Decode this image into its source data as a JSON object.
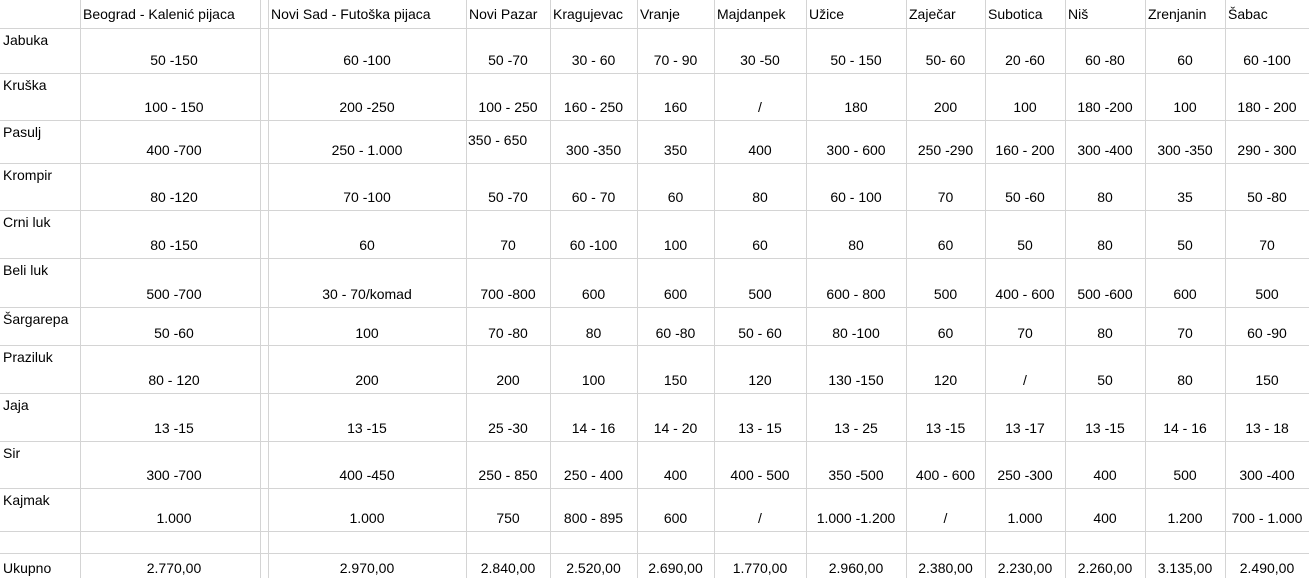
{
  "table": {
    "columns": [
      "Beograd - Kalenić pijaca",
      "Novi Sad - Futoška pijaca",
      "Novi Pazar",
      "Kragujevac",
      "Vranje",
      "Majdanpek",
      "Užice",
      "Zaječar",
      "Subotica",
      "Niš",
      "Zrenjanin",
      "Šabac"
    ],
    "rows": [
      {
        "label": "Jabuka",
        "cells": [
          "50 -150",
          "60 -100",
          "50 -70",
          "30 - 60",
          "70 - 90",
          "30 -50",
          "50 - 150",
          "50- 60",
          "20 -60",
          "60 -80",
          "60",
          "60 -100"
        ]
      },
      {
        "label": "Kruška",
        "cells": [
          "100 - 150",
          "200 -250",
          "100 - 250",
          "160 - 250",
          "160",
          "/",
          "180",
          "200",
          "100",
          "180 -200",
          "100",
          "180 - 200"
        ]
      },
      {
        "label": "Pasulj",
        "cells": [
          "400 -700",
          "250 - 1.000",
          "350 - 650",
          "300 -350",
          "350",
          "400",
          "300 - 600",
          "250 -290",
          "160 - 200",
          "300 -400",
          "300 -350",
          "290 - 300"
        ]
      },
      {
        "label": "Krompir",
        "cells": [
          "80 -120",
          "70 -100",
          "50 -70",
          "60 - 70",
          "60",
          "80",
          "60 - 100",
          "70",
          "50 -60",
          "80",
          "35",
          "50 -80"
        ]
      },
      {
        "label": "Crni luk",
        "cells": [
          "80 -150",
          "60",
          "70",
          "60 -100",
          "100",
          "60",
          "80",
          "60",
          "50",
          "80",
          "50",
          "70"
        ]
      },
      {
        "label": "Beli luk",
        "cells": [
          "500 -700",
          "30 - 70/komad",
          "700 -800",
          "600",
          "600",
          "500",
          "600 - 800",
          "500",
          "400 - 600",
          "500 -600",
          "600",
          "500"
        ]
      },
      {
        "label": "Šargarepa",
        "cells": [
          "50 -60",
          "100",
          "70 -80",
          "80",
          "60 -80",
          "50 - 60",
          "80 -100",
          "60",
          "70",
          "80",
          "70",
          "60 -90"
        ]
      },
      {
        "label": "Praziluk",
        "cells": [
          "80 - 120",
          "200",
          "200",
          "100",
          "150",
          "120",
          "130 -150",
          "120",
          "/",
          "50",
          "80",
          "150"
        ]
      },
      {
        "label": "Jaja",
        "cells": [
          "13 -15",
          "13 -15",
          "25 -30",
          "14 - 16",
          "14 - 20",
          "13 - 15",
          "13 - 25",
          "13 -15",
          "13 -17",
          "13 -15",
          "14 - 16",
          "13 - 18"
        ]
      },
      {
        "label": "Sir",
        "cells": [
          "300 -700",
          "400 -450",
          "250 - 850",
          "250 - 400",
          "400",
          "400 - 500",
          "350 -500",
          "400 - 600",
          "250 -300",
          "400",
          "500",
          "300 -400"
        ]
      },
      {
        "label": "Kajmak",
        "cells": [
          "1.000",
          "1.000",
          "750",
          "800 - 895",
          "600",
          "/",
          "1.000 -1.200",
          "/",
          "1.000",
          "400",
          "1.200",
          "700 - 1.000"
        ]
      }
    ],
    "total": {
      "label": "Ukupno",
      "cells": [
        "2.770,00",
        "2.970,00",
        "2.840,00",
        "2.520,00",
        "2.690,00",
        "1.770,00",
        "2.960,00",
        "2.380,00",
        "2.230,00",
        "2.260,00",
        "3.135,00",
        "2.490,00"
      ]
    }
  }
}
